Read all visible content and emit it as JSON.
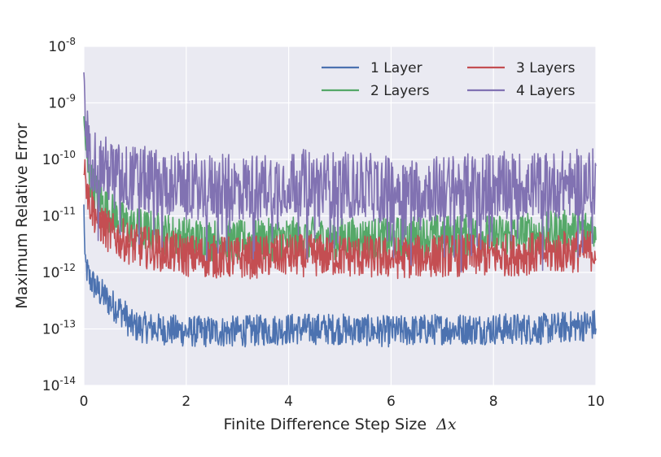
{
  "chart_data": {
    "type": "line",
    "title": "",
    "xlabel": "Finite Difference Step Size",
    "xlabel_math": "Δx",
    "ylabel": "Maximum Relative Error",
    "xlim": [
      0,
      10
    ],
    "ylim": [
      1e-14,
      1e-08
    ],
    "yscale": "log",
    "grid": true,
    "legend_position": "top-right",
    "legend_columns": 2,
    "x_ticks": [
      "0",
      "2",
      "4",
      "6",
      "8",
      "10"
    ],
    "x_tick_values": [
      0,
      2,
      4,
      6,
      8,
      10
    ],
    "y_ticks": [
      {
        "base": "10",
        "exp": "-14",
        "value": 1e-14
      },
      {
        "base": "10",
        "exp": "-13",
        "value": 1e-13
      },
      {
        "base": "10",
        "exp": "-12",
        "value": 1e-12
      },
      {
        "base": "10",
        "exp": "-11",
        "value": 1e-11
      },
      {
        "base": "10",
        "exp": "-10",
        "value": 1e-10
      },
      {
        "base": "10",
        "exp": "-9",
        "value": 1e-09
      },
      {
        "base": "10",
        "exp": "-8",
        "value": 1e-08
      }
    ],
    "background_color": "#eaeaf2",
    "series": [
      {
        "name": "1 Layer",
        "color": "#4c72b0",
        "x": [
          0.0,
          0.02,
          0.05,
          0.1,
          0.2,
          0.3,
          0.4,
          0.5,
          0.6,
          0.7,
          0.8,
          0.9,
          1.0,
          1.5,
          2.0,
          3.0,
          4.0,
          5.0,
          6.0,
          7.0,
          8.0,
          9.0,
          10.0
        ],
        "y": [
          1.5e-11,
          2e-12,
          1.2e-12,
          8e-13,
          6e-13,
          4.5e-13,
          3.8e-13,
          3e-13,
          2.5e-13,
          2.2e-13,
          1.8e-13,
          1.2e-13,
          1.1e-13,
          1e-13,
          9e-14,
          9e-14,
          1e-13,
          1e-13,
          9e-14,
          1e-13,
          1e-13,
          1e-13,
          1.2e-13
        ]
      },
      {
        "name": "2 Layers",
        "color": "#55a868",
        "x": [
          0.0,
          0.02,
          0.05,
          0.1,
          0.2,
          0.3,
          0.5,
          0.7,
          1.0,
          1.5,
          2.0,
          3.0,
          4.0,
          5.0,
          6.0,
          7.0,
          8.0,
          9.0,
          10.0
        ],
        "y": [
          5e-10,
          3e-10,
          1e-10,
          5e-11,
          3e-11,
          2e-11,
          1.2e-11,
          8e-12,
          6e-12,
          5e-12,
          4e-12,
          3.5e-12,
          4e-12,
          4e-12,
          4e-12,
          4.5e-12,
          4.5e-12,
          5e-12,
          6e-12
        ]
      },
      {
        "name": "3 Layers",
        "color": "#c44e52",
        "x": [
          0.0,
          0.02,
          0.05,
          0.1,
          0.2,
          0.3,
          0.5,
          0.7,
          1.0,
          1.5,
          2.0,
          3.0,
          4.0,
          5.0,
          6.0,
          7.0,
          8.0,
          9.0,
          10.0
        ],
        "y": [
          6e-11,
          8e-11,
          4e-11,
          2e-11,
          1.2e-11,
          8e-12,
          5e-12,
          4e-12,
          3e-12,
          2.5e-12,
          2e-12,
          1.8e-12,
          2e-12,
          2e-12,
          1.8e-12,
          2e-12,
          2e-12,
          2.2e-12,
          2.5e-12
        ]
      },
      {
        "name": "4 Layers",
        "color": "#8172b2",
        "x": [
          0.0,
          0.02,
          0.05,
          0.1,
          0.2,
          0.3,
          0.5,
          0.7,
          1.0,
          1.5,
          2.0,
          3.0,
          4.0,
          5.0,
          6.0,
          7.0,
          8.0,
          9.0,
          10.0
        ],
        "y": [
          3e-09,
          1e-09,
          3e-10,
          1.5e-10,
          1e-10,
          8e-11,
          6e-11,
          5e-11,
          4.5e-11,
          4e-11,
          3.5e-11,
          3e-11,
          4e-11,
          3.5e-11,
          3e-11,
          3e-11,
          3.5e-11,
          3.5e-11,
          4e-11
        ]
      }
    ]
  }
}
